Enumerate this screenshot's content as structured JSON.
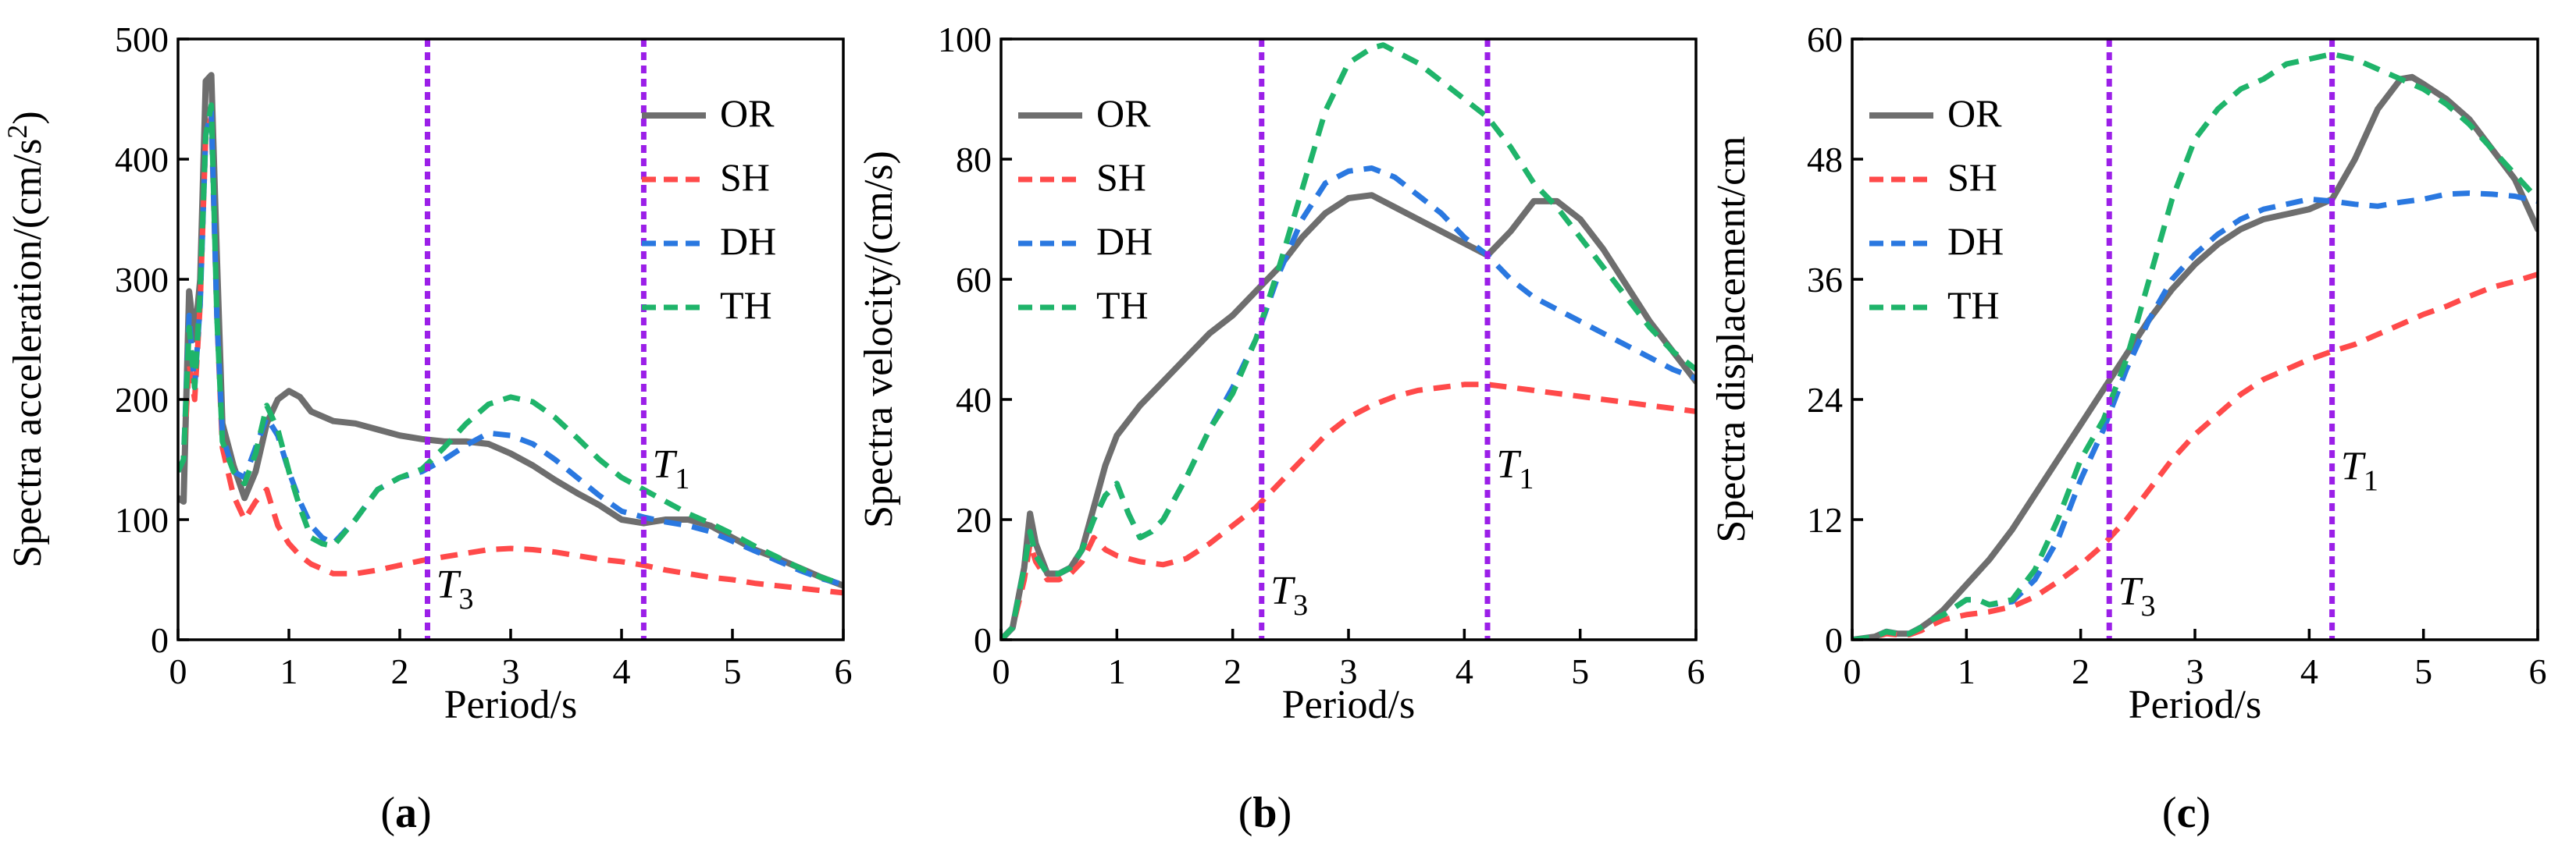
{
  "figure": {
    "colors": {
      "OR": "#6e6e6e",
      "SH": "#ff4a4a",
      "DH": "#2a78e0",
      "TH": "#1fb46a",
      "marker": "#9b1fe8",
      "axis": "#000000"
    },
    "marker_labels": {
      "T1": "T",
      "T1_sub": "1",
      "T3": "T",
      "T3_sub": "3"
    }
  },
  "chart_data": [
    {
      "type": "line",
      "panel_label": "(a)",
      "panel_letter": "a",
      "ylabel": "Spectra acceleration/(cm/s",
      "ylabel_sup": "2",
      "ylabel_end": ")",
      "xlabel": "Period/s",
      "xlim": [
        0,
        6
      ],
      "ylim": [
        0,
        500
      ],
      "xticks": [
        0,
        1,
        2,
        3,
        4,
        5,
        6
      ],
      "yticks": [
        0,
        100,
        200,
        300,
        400,
        500
      ],
      "markers": [
        {
          "label": "T3",
          "x": 2.25,
          "label_x": 2.3,
          "label_y": 35
        },
        {
          "label": "T1",
          "x": 4.2,
          "label_x": 4.25,
          "label_y": 135
        }
      ],
      "legend_position": "top-right",
      "series": [
        {
          "name": "OR",
          "x": [
            0,
            0.05,
            0.1,
            0.15,
            0.2,
            0.25,
            0.3,
            0.35,
            0.4,
            0.5,
            0.6,
            0.7,
            0.8,
            0.9,
            1.0,
            1.1,
            1.2,
            1.4,
            1.6,
            1.8,
            2.0,
            2.2,
            2.4,
            2.6,
            2.8,
            3.0,
            3.2,
            3.4,
            3.6,
            3.8,
            4.0,
            4.2,
            4.4,
            4.6,
            4.8,
            5.0,
            5.2,
            5.4,
            5.6,
            5.8,
            6.0
          ],
          "y": [
            118,
            115,
            290,
            250,
            300,
            465,
            470,
            320,
            180,
            145,
            118,
            140,
            180,
            200,
            207,
            202,
            190,
            182,
            180,
            175,
            170,
            167,
            165,
            165,
            163,
            155,
            145,
            133,
            122,
            112,
            100,
            97,
            100,
            100,
            95,
            85,
            75,
            68,
            60,
            52,
            45
          ]
        },
        {
          "name": "SH",
          "x": [
            0,
            0.05,
            0.1,
            0.15,
            0.2,
            0.25,
            0.3,
            0.35,
            0.4,
            0.5,
            0.6,
            0.7,
            0.8,
            0.9,
            1.0,
            1.1,
            1.2,
            1.4,
            1.6,
            1.8,
            2.0,
            2.2,
            2.4,
            2.6,
            2.8,
            3.0,
            3.2,
            3.4,
            3.6,
            3.8,
            4.0,
            4.2,
            4.4,
            4.6,
            4.8,
            5.0,
            5.2,
            5.4,
            5.6,
            5.8,
            6.0
          ],
          "y": [
            140,
            150,
            230,
            200,
            280,
            420,
            435,
            270,
            160,
            120,
            100,
            115,
            125,
            95,
            80,
            70,
            63,
            55,
            55,
            58,
            62,
            66,
            69,
            72,
            75,
            76,
            75,
            73,
            70,
            67,
            65,
            62,
            58,
            55,
            52,
            50,
            47,
            45,
            43,
            41,
            39
          ]
        },
        {
          "name": "DH",
          "x": [
            0,
            0.05,
            0.1,
            0.15,
            0.2,
            0.25,
            0.3,
            0.35,
            0.4,
            0.5,
            0.6,
            0.7,
            0.8,
            0.9,
            1.0,
            1.1,
            1.2,
            1.3,
            1.4,
            1.6,
            1.8,
            2.0,
            2.2,
            2.4,
            2.6,
            2.8,
            3.0,
            3.2,
            3.4,
            3.6,
            3.8,
            4.0,
            4.2,
            4.4,
            4.6,
            4.8,
            5.0,
            5.2,
            5.4,
            5.6,
            5.8,
            6.0
          ],
          "y": [
            140,
            150,
            270,
            210,
            280,
            420,
            440,
            270,
            170,
            140,
            135,
            160,
            185,
            170,
            140,
            115,
            95,
            85,
            80,
            100,
            125,
            135,
            140,
            150,
            162,
            172,
            170,
            163,
            150,
            135,
            120,
            107,
            102,
            98,
            95,
            90,
            82,
            74,
            66,
            58,
            51,
            46
          ]
        },
        {
          "name": "TH",
          "x": [
            0,
            0.05,
            0.1,
            0.15,
            0.2,
            0.25,
            0.3,
            0.35,
            0.4,
            0.5,
            0.6,
            0.7,
            0.8,
            0.9,
            1.0,
            1.1,
            1.2,
            1.3,
            1.4,
            1.6,
            1.8,
            2.0,
            2.2,
            2.4,
            2.6,
            2.8,
            3.0,
            3.2,
            3.4,
            3.6,
            3.8,
            4.0,
            4.2,
            4.4,
            4.6,
            4.8,
            5.0,
            5.2,
            5.4,
            5.6,
            5.8,
            6.0
          ],
          "y": [
            140,
            150,
            260,
            210,
            290,
            420,
            445,
            270,
            165,
            140,
            130,
            155,
            195,
            175,
            140,
            110,
            85,
            80,
            78,
            100,
            125,
            135,
            142,
            160,
            180,
            196,
            202,
            198,
            185,
            168,
            150,
            135,
            125,
            115,
            105,
            97,
            88,
            78,
            69,
            60,
            52,
            46
          ]
        }
      ]
    },
    {
      "type": "line",
      "panel_label": "(b)",
      "panel_letter": "b",
      "ylabel": "Spectra velocity/(cm/s)",
      "ylabel_sup": "",
      "ylabel_end": "",
      "xlabel": "Period/s",
      "xlim": [
        0,
        6
      ],
      "ylim": [
        0,
        100
      ],
      "xticks": [
        0,
        1,
        2,
        3,
        4,
        5,
        6
      ],
      "yticks": [
        0,
        20,
        40,
        60,
        80,
        100
      ],
      "markers": [
        {
          "label": "T3",
          "x": 2.25,
          "label_x": 2.3,
          "label_y": 6
        },
        {
          "label": "T1",
          "x": 4.2,
          "label_x": 4.25,
          "label_y": 27
        }
      ],
      "legend_position": "top-left",
      "series": [
        {
          "name": "OR",
          "x": [
            0,
            0.1,
            0.2,
            0.25,
            0.3,
            0.4,
            0.5,
            0.6,
            0.7,
            0.8,
            0.9,
            1.0,
            1.2,
            1.4,
            1.6,
            1.8,
            2.0,
            2.2,
            2.4,
            2.6,
            2.8,
            3.0,
            3.2,
            3.4,
            3.6,
            3.8,
            4.0,
            4.2,
            4.4,
            4.6,
            4.8,
            5.0,
            5.2,
            5.4,
            5.6,
            5.8,
            6.0
          ],
          "y": [
            0,
            2,
            12,
            21,
            16,
            11,
            11,
            12,
            15,
            22,
            29,
            34,
            39,
            43,
            47,
            51,
            54,
            58,
            62,
            67,
            71,
            73.5,
            74,
            72,
            70,
            68,
            66,
            64,
            68,
            73,
            73,
            70,
            65,
            59,
            53,
            48,
            43
          ]
        },
        {
          "name": "SH",
          "x": [
            0,
            0.1,
            0.2,
            0.25,
            0.3,
            0.4,
            0.5,
            0.6,
            0.7,
            0.8,
            0.9,
            1.0,
            1.2,
            1.4,
            1.6,
            1.8,
            2.0,
            2.2,
            2.4,
            2.6,
            2.8,
            3.0,
            3.2,
            3.4,
            3.6,
            3.8,
            4.0,
            4.2,
            4.4,
            4.6,
            4.8,
            5.0,
            5.2,
            5.4,
            5.6,
            5.8,
            6.0
          ],
          "y": [
            0,
            2,
            10,
            16,
            13,
            10,
            10,
            11,
            13,
            17,
            15,
            14,
            13,
            12.5,
            13.5,
            16,
            19,
            22,
            26,
            30,
            34,
            37,
            39,
            40.5,
            41.5,
            42,
            42.5,
            42.5,
            42,
            41.5,
            41,
            40.5,
            40,
            39.5,
            39,
            38.5,
            38
          ]
        },
        {
          "name": "DH",
          "x": [
            0,
            0.1,
            0.2,
            0.25,
            0.3,
            0.4,
            0.5,
            0.6,
            0.7,
            0.8,
            0.9,
            1.0,
            1.1,
            1.2,
            1.3,
            1.4,
            1.6,
            1.8,
            2.0,
            2.2,
            2.4,
            2.6,
            2.8,
            3.0,
            3.2,
            3.4,
            3.6,
            3.8,
            4.0,
            4.2,
            4.4,
            4.6,
            4.8,
            5.0,
            5.2,
            5.4,
            5.6,
            5.8,
            6.0
          ],
          "y": [
            0,
            2,
            12,
            18,
            14,
            11,
            11,
            12,
            15,
            20,
            24,
            26,
            21,
            17,
            18,
            20,
            27,
            35,
            42,
            50,
            61,
            70,
            76,
            78,
            78.5,
            77,
            74,
            71,
            67,
            64,
            60,
            57,
            55,
            53,
            51,
            49,
            47,
            45,
            43.5
          ]
        },
        {
          "name": "TH",
          "x": [
            0,
            0.1,
            0.2,
            0.25,
            0.3,
            0.4,
            0.5,
            0.6,
            0.7,
            0.8,
            0.9,
            1.0,
            1.1,
            1.2,
            1.3,
            1.4,
            1.6,
            1.8,
            2.0,
            2.2,
            2.4,
            2.6,
            2.8,
            3.0,
            3.2,
            3.3,
            3.4,
            3.6,
            3.8,
            4.0,
            4.2,
            4.4,
            4.6,
            4.8,
            5.0,
            5.2,
            5.4,
            5.6,
            5.8,
            6.0
          ],
          "y": [
            0,
            2,
            12,
            18,
            14,
            11,
            11,
            12,
            15,
            20,
            24,
            26,
            21,
            17,
            18,
            20,
            27,
            35,
            41,
            50,
            62,
            75,
            88,
            96,
            98.5,
            99,
            98,
            96,
            93,
            90,
            87,
            82,
            76,
            72,
            67,
            62,
            57,
            52,
            48,
            45
          ]
        }
      ]
    },
    {
      "type": "line",
      "panel_label": "(c)",
      "panel_letter": "c",
      "ylabel": "Spectra displacement/cm",
      "ylabel_sup": "",
      "ylabel_end": "",
      "xlabel": "Period/s",
      "xlim": [
        0,
        6
      ],
      "ylim": [
        0,
        60
      ],
      "xticks": [
        0,
        1,
        2,
        3,
        4,
        5,
        6
      ],
      "yticks": [
        0,
        12,
        24,
        36,
        48,
        60
      ],
      "markers": [
        {
          "label": "T3",
          "x": 2.25,
          "label_x": 2.3,
          "label_y": 3.5
        },
        {
          "label": "T1",
          "x": 4.2,
          "label_x": 4.25,
          "label_y": 16
        }
      ],
      "legend_position": "top-left",
      "series": [
        {
          "name": "OR",
          "x": [
            0,
            0.2,
            0.3,
            0.4,
            0.5,
            0.6,
            0.7,
            0.8,
            1.0,
            1.2,
            1.4,
            1.6,
            1.8,
            2.0,
            2.2,
            2.4,
            2.6,
            2.8,
            3.0,
            3.2,
            3.4,
            3.6,
            3.8,
            4.0,
            4.2,
            4.4,
            4.6,
            4.8,
            4.9,
            5.0,
            5.2,
            5.4,
            5.6,
            5.8,
            6.0
          ],
          "y": [
            0,
            0.3,
            0.8,
            0.6,
            0.6,
            1.2,
            2,
            3,
            5.5,
            8,
            11,
            14.5,
            18,
            21.5,
            25,
            28.5,
            32,
            35,
            37.5,
            39.5,
            41,
            42,
            42.5,
            43,
            44,
            48,
            53,
            56,
            56.2,
            55.5,
            54,
            52,
            49,
            46,
            41
          ]
        },
        {
          "name": "SH",
          "x": [
            0,
            0.2,
            0.3,
            0.4,
            0.5,
            0.6,
            0.7,
            0.8,
            1.0,
            1.2,
            1.4,
            1.6,
            1.8,
            2.0,
            2.2,
            2.4,
            2.6,
            2.8,
            3.0,
            3.2,
            3.4,
            3.6,
            3.8,
            4.0,
            4.2,
            4.4,
            4.6,
            4.8,
            5.0,
            5.2,
            5.4,
            5.6,
            5.8,
            6.0
          ],
          "y": [
            0,
            0.3,
            0.6,
            0.5,
            0.5,
            0.9,
            1.5,
            2,
            2.5,
            2.8,
            3.3,
            4.3,
            5.8,
            7.5,
            9.5,
            12,
            15,
            18,
            20.5,
            22.5,
            24.5,
            26,
            27,
            28,
            28.8,
            29.5,
            30.5,
            31.5,
            32.5,
            33.3,
            34.3,
            35.2,
            35.8,
            36.5
          ]
        },
        {
          "name": "DH",
          "x": [
            0,
            0.2,
            0.3,
            0.4,
            0.5,
            0.6,
            0.7,
            0.8,
            1.0,
            1.1,
            1.2,
            1.4,
            1.6,
            1.8,
            2.0,
            2.2,
            2.4,
            2.6,
            2.8,
            3.0,
            3.2,
            3.4,
            3.6,
            3.8,
            4.0,
            4.2,
            4.4,
            4.6,
            4.8,
            5.0,
            5.2,
            5.4,
            5.6,
            5.8,
            6.0
          ],
          "y": [
            0,
            0.3,
            0.8,
            0.6,
            0.6,
            1.2,
            2,
            2.5,
            4,
            4,
            3.5,
            3.8,
            6,
            10,
            16,
            21,
            27,
            32,
            36,
            38.5,
            40.5,
            42,
            43,
            43.5,
            44,
            43.8,
            43.5,
            43.3,
            43.7,
            44,
            44.5,
            44.6,
            44.5,
            44.3,
            43.8
          ]
        },
        {
          "name": "TH",
          "x": [
            0,
            0.2,
            0.3,
            0.4,
            0.5,
            0.6,
            0.7,
            0.8,
            1.0,
            1.1,
            1.2,
            1.4,
            1.6,
            1.8,
            2.0,
            2.2,
            2.4,
            2.6,
            2.8,
            3.0,
            3.2,
            3.4,
            3.6,
            3.8,
            4.0,
            4.2,
            4.4,
            4.6,
            4.8,
            5.0,
            5.2,
            5.4,
            5.6,
            5.8,
            6.0
          ],
          "y": [
            0,
            0.3,
            0.8,
            0.6,
            0.6,
            1.2,
            2,
            2.5,
            4,
            4,
            3.5,
            4,
            7,
            12,
            18,
            22,
            28,
            36,
            44,
            50,
            53,
            55,
            56,
            57.5,
            58,
            58.5,
            58,
            57,
            56,
            55,
            53.5,
            51.5,
            49,
            46.5,
            44
          ]
        }
      ]
    }
  ]
}
